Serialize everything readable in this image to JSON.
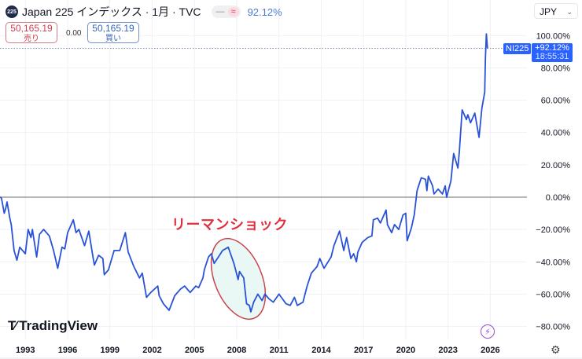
{
  "header": {
    "logo_text": "225",
    "title": "Japan 225 インデックス · 1月 · TVC",
    "pill_icons": [
      "minus-icon",
      "wave-icon"
    ],
    "change_pct": "92.12%"
  },
  "trade": {
    "sell_price": "50,165.19",
    "sell_label": "売り",
    "spread": "0.00",
    "buy_price": "50,165.19",
    "buy_label": "買い"
  },
  "currency": {
    "selected": "JPY"
  },
  "price_tag": {
    "symbol": "NI225",
    "value": "+92.12%",
    "time": "18:55:31"
  },
  "annotation": {
    "text": "リーマンショック"
  },
  "branding": {
    "name": "TradingView"
  },
  "colors": {
    "line": "#2a52d6",
    "annotation": "#e0303e",
    "tag": "#2962ff",
    "ellipse_fill": "#e3f6f3"
  },
  "chart_data": {
    "type": "line",
    "title": "",
    "xlabel": "",
    "ylabel": "",
    "ylim": [
      -88,
      122
    ],
    "xlim": [
      1991.2,
      2028.6
    ],
    "grid": true,
    "y_ticks": [
      {
        "v": 100,
        "label": "100.00%"
      },
      {
        "v": 80,
        "label": "80.00%"
      },
      {
        "v": 60,
        "label": "60.00%"
      },
      {
        "v": 40,
        "label": "40.00%"
      },
      {
        "v": 20,
        "label": "20.00%"
      },
      {
        "v": 0,
        "label": "0.00%"
      },
      {
        "v": -20,
        "label": "−20.00%"
      },
      {
        "v": -40,
        "label": "−40.00%"
      },
      {
        "v": -60,
        "label": "−60.00%"
      },
      {
        "v": -80,
        "label": "−80.00%"
      }
    ],
    "x_ticks": [
      "1993",
      "1996",
      "1999",
      "2002",
      "2005",
      "2008",
      "2011",
      "2014",
      "2017",
      "2020",
      "2023",
      "2026"
    ],
    "series": [
      {
        "x": [
          1991.2,
          1991.3,
          1991.5,
          1991.6,
          1991.7,
          1991.9,
          1992.0,
          1992.2,
          1992.4,
          1992.6,
          1992.8,
          1993.0,
          1993.2,
          1993.4,
          1993.5,
          1993.8,
          1994.0,
          1994.3,
          1994.7,
          1995.0,
          1995.3,
          1995.6,
          1995.8,
          1996.0,
          1996.4,
          1996.6,
          1996.8,
          1997.2,
          1997.5,
          1997.8,
          1997.9,
          1998.2,
          1998.5,
          1998.6,
          1998.9,
          1999.3,
          1999.7,
          2000.1,
          2000.3,
          2000.7,
          2001.1,
          2001.3,
          2001.6,
          2001.9,
          2002.4,
          2002.5,
          2002.8,
          2003.2,
          2003.6,
          2004.0,
          2004.3,
          2004.7,
          2005.1,
          2005.3,
          2005.6,
          2005.7,
          2006.0,
          2006.2,
          2006.4,
          2006.7,
          2007.0,
          2007.4,
          2007.6,
          2007.8,
          2008.1,
          2008.2,
          2008.5,
          2008.7,
          2008.9,
          2009.0,
          2009.2,
          2009.5,
          2009.8,
          2010.0,
          2010.3,
          2010.6,
          2011.0,
          2011.5,
          2011.8,
          2012.1,
          2012.3,
          2012.7,
          2013.0,
          2013.3,
          2013.7,
          2013.9,
          2014.2,
          2014.7,
          2014.9,
          2015.3,
          2015.6,
          2015.8,
          2016.1,
          2016.3,
          2016.5,
          2016.6,
          2016.9,
          2017.3,
          2017.6,
          2017.7,
          2018.0,
          2018.2,
          2018.6,
          2018.7,
          2019.0,
          2019.2,
          2019.5,
          2019.8,
          2020.0,
          2020.1,
          2020.4,
          2020.6,
          2020.8,
          2021.1,
          2021.4,
          2021.5,
          2021.6,
          2021.9,
          2022.0,
          2022.3,
          2022.6,
          2022.8,
          2022.9,
          2023.2,
          2023.4,
          2023.7,
          2023.8,
          2024.0,
          2024.3,
          2024.4,
          2024.6,
          2024.9,
          2025.2,
          2025.4,
          2025.6,
          2025.65,
          2025.72,
          2025.8
        ],
        "y": [
          0,
          -0.5,
          -10,
          -7,
          -3,
          -13,
          -17,
          -33,
          -39,
          -31,
          -33,
          -35,
          -20,
          -25,
          -20,
          -37,
          -23,
          -20,
          -24,
          -33,
          -44,
          -31,
          -32,
          -22,
          -14,
          -22,
          -20,
          -30,
          -21,
          -37,
          -42,
          -36,
          -38,
          -48,
          -45,
          -33,
          -33,
          -22,
          -34,
          -43,
          -50,
          -47,
          -62,
          -59,
          -55,
          -61,
          -66,
          -70,
          -61,
          -57,
          -55,
          -59,
          -55,
          -56,
          -50,
          -45,
          -37,
          -35,
          -41,
          -37,
          -33,
          -31,
          -36,
          -41,
          -51,
          -46,
          -50,
          -66,
          -67,
          -71,
          -65,
          -60,
          -64,
          -60,
          -63,
          -65,
          -60,
          -66,
          -67,
          -62,
          -67,
          -65,
          -55,
          -47,
          -43,
          -38,
          -44,
          -37,
          -30,
          -21,
          -33,
          -25,
          -38,
          -35,
          -40,
          -34,
          -28,
          -25,
          -24,
          -14,
          -13,
          -16,
          -8,
          -17,
          -22,
          -17,
          -20,
          -11,
          -10,
          -27,
          -19,
          -11,
          4,
          12,
          11,
          4,
          13,
          7,
          2,
          5,
          2,
          7,
          0,
          10,
          27,
          18,
          28,
          54,
          48,
          51,
          46,
          52,
          37,
          55,
          65,
          86,
          101,
          92.12
        ]
      }
    ]
  }
}
